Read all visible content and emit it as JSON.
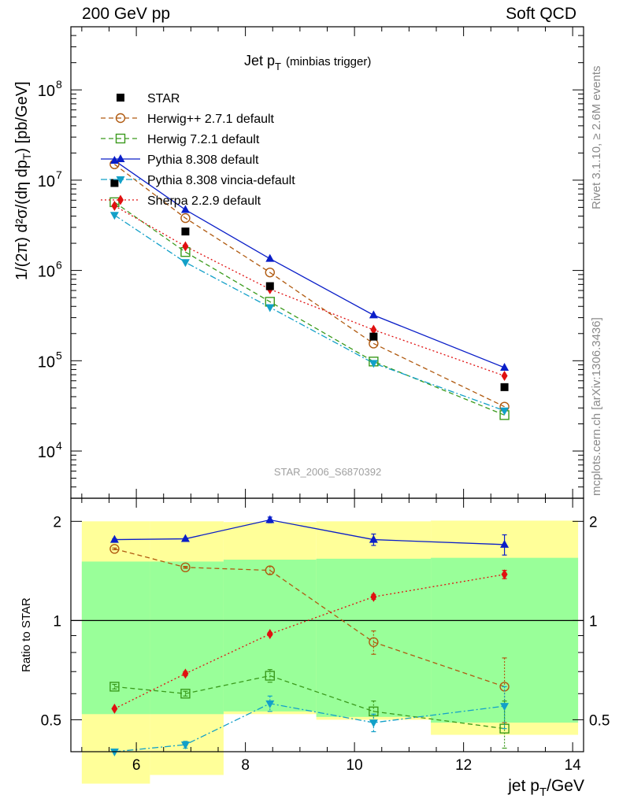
{
  "header": {
    "left": "200 GeV pp",
    "right": "Soft QCD"
  },
  "chart_data": {
    "type": "scatter",
    "title_main": "Jet p",
    "title_sub": "T",
    "title_note": "(minbias trigger)",
    "analysis_label": "STAR_2006_S6870392",
    "side_label_top": "Rivet 3.1.10, ≥ 2.6M events",
    "side_label_bottom": "mcplots.cern.ch [arXiv:1306.3436]",
    "xlabel": "jet p",
    "xlabel_sub": "T",
    "xlabel_unit": "/GeV",
    "ylabel_main": "1/(2π) d²σ/(dη dp",
    "ylabel_sub": "T",
    "ylabel_unit": ") [pb/GeV]",
    "ratio_ylabel": "Ratio to STAR",
    "xlim": [
      4.8,
      14.2
    ],
    "ylim": [
      3000,
      500000000
    ],
    "yscale": "log",
    "ratio_ylim": [
      0.4,
      2.35
    ],
    "ratio_yscale": "log",
    "x_ticks": [
      "6",
      "8",
      "10",
      "12",
      "14"
    ],
    "x_tick_values": [
      6,
      8,
      10,
      12,
      14
    ],
    "y_ticks": [
      {
        "base": "10",
        "exp": "4",
        "value": 10000
      },
      {
        "base": "10",
        "exp": "5",
        "value": 100000
      },
      {
        "base": "10",
        "exp": "6",
        "value": 1000000
      },
      {
        "base": "10",
        "exp": "7",
        "value": 10000000
      },
      {
        "base": "10",
        "exp": "8",
        "value": 100000000
      }
    ],
    "ratio_ticks": [
      {
        "label": "0.5",
        "value": 0.5
      },
      {
        "label": "1",
        "value": 1
      },
      {
        "label": "2",
        "value": 2
      }
    ],
    "x": [
      5.6,
      6.9,
      8.45,
      10.35,
      12.75
    ],
    "bands": {
      "edges": [
        5.0,
        6.25,
        7.6,
        9.3,
        11.4,
        14.1
      ],
      "yellow": [
        [
          0.32,
          2.0
        ],
        [
          0.34,
          2.0
        ],
        [
          0.52,
          1.99
        ],
        [
          0.5,
          2.0
        ],
        [
          0.45,
          2.01
        ]
      ],
      "green": [
        [
          0.52,
          1.51
        ],
        [
          0.52,
          1.51
        ],
        [
          0.53,
          1.53
        ],
        [
          0.51,
          1.54
        ],
        [
          0.49,
          1.55
        ]
      ]
    },
    "data_series": {
      "name": "STAR",
      "y": [
        9300000,
        2700000,
        670000,
        185000,
        51000
      ]
    },
    "series": [
      {
        "name": "Herwig++ 2.7.1 default",
        "color": "#b05a10",
        "marker": "circle-open",
        "dash": "6,4",
        "y": [
          15000000,
          3800000,
          950000,
          155000,
          31000
        ],
        "ratio": [
          1.65,
          1.45,
          1.42,
          0.86,
          0.63
        ],
        "ratio_err": [
          0.01,
          0.01,
          0.04,
          0.07,
          0.14
        ]
      },
      {
        "name": "Herwig 7.2.1 default",
        "color": "#3a9a1c",
        "marker": "square-open",
        "dash": "6,4",
        "y": [
          5700000,
          1600000,
          450000,
          98000,
          25000
        ],
        "ratio": [
          0.63,
          0.6,
          0.68,
          0.53,
          0.47
        ],
        "ratio_err": [
          0.01,
          0.01,
          0.03,
          0.04,
          0.1
        ]
      },
      {
        "name": "Pythia 8.308 default",
        "color": "#0a1ec8",
        "marker": "triangle-up",
        "dash": "",
        "y": [
          16500000,
          4700000,
          1350000,
          320000,
          84000
        ],
        "ratio": [
          1.76,
          1.77,
          2.02,
          1.76,
          1.7
        ],
        "ratio_err": [
          0.01,
          0.01,
          0.04,
          0.07,
          0.12
        ]
      },
      {
        "name": "Pythia 8.308 vincia-default",
        "color": "#12a0c8",
        "marker": "triangle-down",
        "dash": "8,3,2,3",
        "y": [
          4100000,
          1230000,
          390000,
          94000,
          28000
        ],
        "ratio": [
          0.4,
          0.42,
          0.56,
          0.49,
          0.55
        ],
        "ratio_err": [
          0.0,
          0.01,
          0.03,
          0.03,
          0.08
        ]
      },
      {
        "name": "Sherpa 2.2.9 default",
        "color": "#e01010",
        "marker": "diamond",
        "dash": "2,3",
        "y": [
          5200000,
          1850000,
          620000,
          220000,
          68000
        ],
        "ratio": [
          0.54,
          0.69,
          0.91,
          1.18,
          1.38
        ],
        "ratio_err": [
          0.0,
          0.01,
          0.01,
          0.02,
          0.04
        ]
      }
    ]
  }
}
